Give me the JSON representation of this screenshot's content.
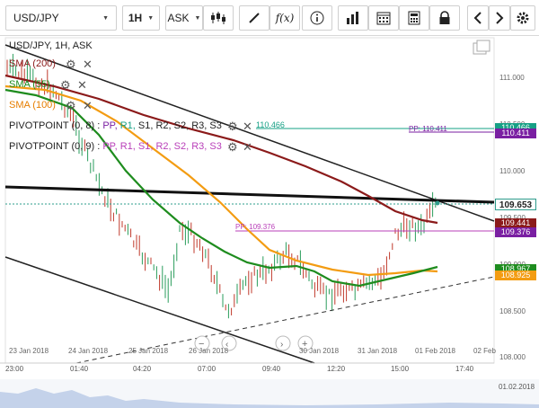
{
  "toolbar": {
    "symbol": "USD/JPY",
    "timeframe": "1H",
    "price_type": "ASK",
    "icons": [
      "candles-icon",
      "draw-line-icon",
      "function-icon",
      "info-icon",
      "bar-chart-icon",
      "calendar-icon",
      "calculator-icon",
      "lock-icon",
      "chevron-left-icon",
      "chevron-right-icon",
      "gear-icon"
    ],
    "fx_label": "f(x)"
  },
  "chart": {
    "title": "USD/JPY, 1H, ASK",
    "indicators": [
      {
        "label": "SMA (200)",
        "color": "#8b1a1a"
      },
      {
        "label": "SMA (55)",
        "color": "#1e8c1e"
      },
      {
        "label": "SMA (100)",
        "color": "#f39c12"
      }
    ],
    "pivot1": {
      "prefix": "PIVOTPOINT (0, 8)",
      "parts": [
        "PP,",
        "R1,",
        "S1,",
        "R2,",
        "S2,",
        "R3,",
        "S3"
      ],
      "value": "110.466"
    },
    "pivot2": {
      "prefix": "PIVOTPOINT (0, 9)",
      "parts": [
        "PP,",
        "R1,",
        "S1,",
        "R2,",
        "S2,",
        "R3,",
        "S3"
      ]
    },
    "pp_label_upper": "PP: 110.411",
    "pp_label_lower": "PP: 109.376",
    "price_axis": [
      "111.000",
      "110.500",
      "110.000",
      "109.500",
      "109.000",
      "108.500",
      "108.000"
    ],
    "price_tags": [
      {
        "text": "110.466",
        "color": "#16a085"
      },
      {
        "text": "110.411",
        "color": "#7a1fa2"
      },
      {
        "text": "109.653",
        "color": "#ffffff"
      },
      {
        "text": "109.441",
        "color": "#8b1a1a"
      },
      {
        "text": "109.376",
        "color": "#7a1fa2"
      },
      {
        "text": "108.967",
        "color": "#1e8c1e"
      },
      {
        "text": "108.925",
        "color": "#f39c12"
      }
    ],
    "date_labels": [
      "23 Jan 2018",
      "24 Jan 2018",
      "25 Jan 2018",
      "26 Jan 2018",
      "30 Jan 2018",
      "31 Jan 2018",
      "01 Feb 2018",
      "02 Feb"
    ],
    "time_labels": [
      "23:00",
      "01:40",
      "04:20",
      "07:00",
      "09:40",
      "12:20",
      "15:00",
      "17:40"
    ],
    "nav_date": "01.02.2018",
    "chart_data": {
      "type": "candlestick",
      "series": [
        {
          "name": "SMA (200)"
        },
        {
          "name": "SMA (55)"
        },
        {
          "name": "SMA (100)"
        }
      ],
      "last_price": 109.653
    }
  }
}
